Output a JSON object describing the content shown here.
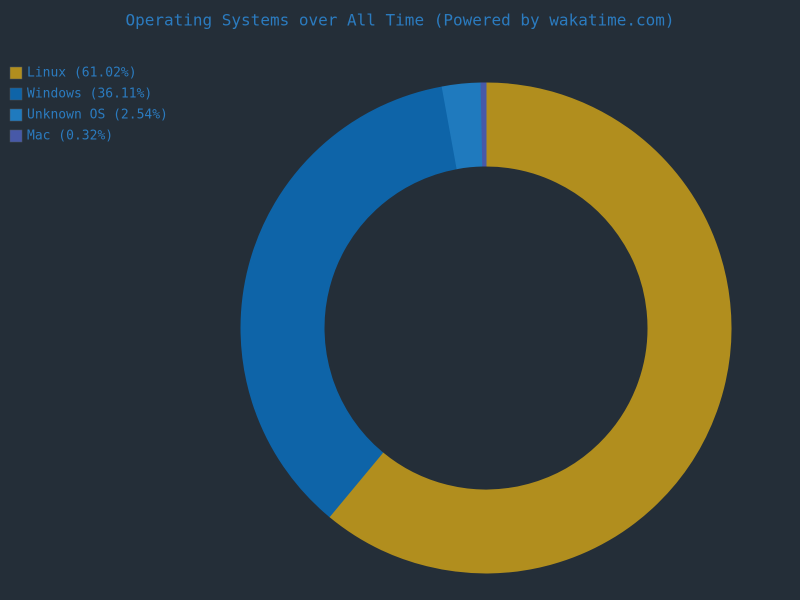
{
  "chart_data": {
    "type": "donut",
    "title": "Operating Systems over All Time (Powered by wakatime.com)",
    "categories": [
      "Linux (61.02%)",
      "Windows (36.11%)",
      "Unknown OS (2.54%)",
      "Mac (0.32%)"
    ],
    "values": [
      61.02,
      36.11,
      2.54,
      0.32
    ],
    "colors": [
      "#b18e1e",
      "#0e64a8",
      "#1f7abe",
      "#4759a8"
    ]
  }
}
